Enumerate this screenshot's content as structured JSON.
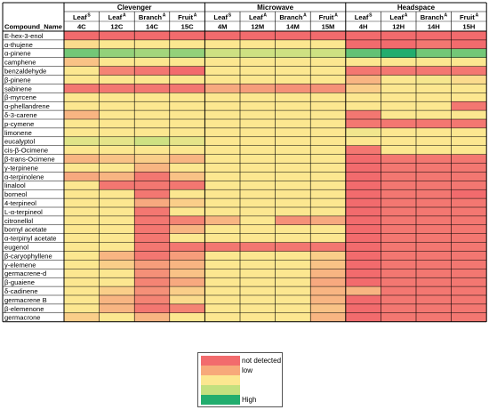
{
  "chart_data": {
    "type": "heatmap",
    "title": "",
    "row_header": "Compound_Name",
    "groups": [
      {
        "name": "Clevenger",
        "columns": [
          0,
          1,
          2,
          3
        ]
      },
      {
        "name": "Microwave",
        "columns": [
          4,
          5,
          6,
          7
        ]
      },
      {
        "name": "Headspace",
        "columns": [
          8,
          9,
          10,
          11
        ]
      }
    ],
    "columns": [
      {
        "tissue": "Leaf",
        "sup": "S",
        "code": "4C"
      },
      {
        "tissue": "Leaf",
        "sup": "A",
        "code": "12C"
      },
      {
        "tissue": "Branch",
        "sup": "A",
        "code": "14C"
      },
      {
        "tissue": "Fruit",
        "sup": "A",
        "code": "15C"
      },
      {
        "tissue": "Leaf",
        "sup": "S",
        "code": "4M"
      },
      {
        "tissue": "Leaf",
        "sup": "A",
        "code": "12M"
      },
      {
        "tissue": "Branch",
        "sup": "A",
        "code": "14M"
      },
      {
        "tissue": "Fruit",
        "sup": "A",
        "code": "15M"
      },
      {
        "tissue": "Leaf",
        "sup": "S",
        "code": "4H"
      },
      {
        "tissue": "Leaf",
        "sup": "A",
        "code": "12H"
      },
      {
        "tissue": "Branch",
        "sup": "A",
        "code": "14H"
      },
      {
        "tissue": "Fruit",
        "sup": "A",
        "code": "15H"
      }
    ],
    "rows": [
      "E-hex-3-enol",
      "α-thujene",
      "α-pinene",
      " camphene",
      "benzaldehyde",
      "β-pinene",
      "sabinene",
      "β-myrcene",
      "α-phellandrene",
      "δ-3-carene",
      "p-cymene",
      "limonene",
      "eucalyptol",
      "cis-β-Ocimene",
      "β-trans-Ocimene",
      "γ-terpinene",
      "α-terpinolene",
      "linalool",
      "borneol",
      "4-terpineol",
      " L-α-terpineol",
      "citronellol",
      "bornyl acetate",
      "α-terpinyl acetate",
      "eugenol",
      "β-caryophyllene",
      "γ-elemene",
      "germacrene-d",
      "β-guaiene",
      "δ-cadinene",
      "germacrene B",
      "β-elemenone",
      "germacrone"
    ],
    "scale": "0 = not detected, 1 = low, 4 = High",
    "values": [
      [
        0.0,
        0.0,
        0.0,
        0.0,
        0.0,
        0.0,
        0.0,
        0.0,
        0.0,
        0.0,
        0.0,
        0.0
      ],
      [
        0.9,
        1.0,
        1.0,
        1.0,
        1.0,
        1.0,
        1.0,
        1.0,
        0.0,
        0.0,
        0.1,
        0.0
      ],
      [
        3.0,
        2.6,
        2.4,
        2.6,
        1.8,
        1.8,
        1.8,
        1.8,
        3.2,
        4.0,
        3.0,
        3.0
      ],
      [
        0.7,
        1.0,
        1.0,
        1.0,
        1.0,
        1.0,
        1.0,
        1.0,
        1.0,
        1.0,
        1.0,
        1.0
      ],
      [
        1.0,
        0.2,
        0.1,
        0.0,
        1.0,
        1.0,
        1.0,
        1.0,
        0.1,
        0.1,
        0.1,
        0.1
      ],
      [
        1.0,
        1.0,
        1.0,
        1.0,
        1.0,
        1.0,
        1.0,
        1.0,
        0.6,
        1.0,
        1.1,
        0.9
      ],
      [
        0.1,
        0.1,
        0.1,
        0.1,
        0.5,
        0.4,
        0.3,
        0.3,
        0.8,
        1.0,
        1.0,
        1.0
      ],
      [
        1.0,
        1.0,
        1.0,
        1.0,
        1.0,
        1.0,
        1.0,
        1.0,
        1.0,
        1.0,
        1.0,
        1.0
      ],
      [
        1.0,
        1.0,
        1.0,
        1.0,
        1.0,
        1.0,
        1.0,
        1.0,
        1.0,
        1.0,
        1.0,
        0.1
      ],
      [
        0.6,
        1.0,
        1.0,
        1.0,
        1.0,
        1.0,
        1.0,
        1.0,
        0.1,
        1.0,
        1.0,
        1.0
      ],
      [
        1.0,
        1.0,
        1.0,
        1.0,
        1.0,
        1.0,
        1.0,
        1.0,
        0.1,
        0.1,
        0.1,
        0.1
      ],
      [
        1.0,
        1.0,
        1.0,
        1.0,
        1.0,
        1.0,
        1.0,
        1.0,
        1.2,
        1.0,
        1.0,
        1.0
      ],
      [
        1.5,
        1.4,
        1.8,
        1.4,
        1.0,
        1.0,
        1.0,
        1.0,
        1.0,
        1.0,
        1.0,
        1.0
      ],
      [
        1.0,
        1.0,
        1.0,
        1.0,
        1.0,
        1.0,
        1.0,
        1.0,
        0.1,
        1.0,
        1.0,
        1.0
      ],
      [
        0.6,
        0.7,
        0.8,
        0.6,
        1.0,
        1.0,
        1.0,
        1.0,
        0.0,
        0.1,
        0.1,
        0.1
      ],
      [
        1.0,
        1.0,
        0.6,
        1.0,
        1.0,
        1.0,
        1.0,
        1.0,
        0.0,
        0.1,
        0.1,
        0.1
      ],
      [
        0.5,
        0.6,
        0.1,
        0.7,
        1.0,
        1.0,
        1.0,
        1.0,
        0.0,
        0.1,
        0.1,
        0.1
      ],
      [
        1.0,
        0.1,
        0.1,
        0.1,
        1.0,
        1.0,
        1.0,
        1.0,
        0.0,
        0.1,
        0.1,
        0.1
      ],
      [
        1.0,
        1.0,
        0.1,
        1.0,
        1.0,
        1.0,
        1.0,
        1.0,
        0.0,
        0.1,
        0.1,
        0.0
      ],
      [
        1.0,
        1.0,
        0.5,
        0.8,
        1.0,
        1.0,
        1.0,
        1.0,
        0.0,
        0.1,
        0.1,
        0.1
      ],
      [
        1.0,
        1.0,
        0.1,
        1.0,
        1.0,
        1.0,
        1.0,
        1.0,
        0.0,
        0.1,
        0.1,
        0.1
      ],
      [
        1.0,
        1.0,
        0.1,
        0.2,
        0.6,
        1.0,
        0.3,
        0.5,
        0.0,
        0.1,
        0.1,
        0.1
      ],
      [
        1.0,
        1.0,
        0.1,
        0.6,
        1.0,
        1.0,
        1.0,
        1.0,
        0.0,
        0.1,
        0.1,
        0.1
      ],
      [
        1.0,
        1.0,
        0.1,
        1.0,
        1.0,
        1.0,
        1.0,
        1.0,
        0.0,
        0.1,
        0.1,
        0.1
      ],
      [
        1.0,
        1.0,
        0.1,
        0.1,
        0.1,
        0.1,
        0.1,
        0.1,
        0.0,
        0.1,
        0.1,
        0.1
      ],
      [
        1.0,
        0.6,
        0.1,
        0.4,
        1.0,
        1.0,
        1.0,
        0.8,
        0.0,
        0.1,
        0.1,
        0.1
      ],
      [
        1.0,
        0.8,
        0.4,
        0.6,
        1.0,
        1.0,
        1.0,
        0.7,
        0.0,
        0.1,
        0.1,
        0.1
      ],
      [
        1.0,
        1.0,
        0.3,
        0.7,
        1.0,
        1.0,
        1.0,
        0.6,
        0.0,
        0.1,
        0.1,
        0.1
      ],
      [
        1.0,
        1.0,
        0.2,
        0.5,
        1.0,
        1.0,
        1.0,
        0.5,
        0.0,
        0.1,
        0.1,
        0.1
      ],
      [
        1.0,
        0.8,
        0.3,
        0.8,
        1.0,
        1.0,
        1.0,
        0.6,
        0.6,
        0.1,
        0.1,
        0.1
      ],
      [
        1.0,
        0.6,
        0.2,
        0.9,
        1.0,
        1.0,
        1.0,
        0.6,
        0.0,
        0.1,
        0.1,
        0.1
      ],
      [
        1.0,
        0.6,
        0.1,
        0.2,
        1.0,
        1.0,
        1.0,
        0.7,
        0.0,
        0.1,
        0.1,
        0.1
      ],
      [
        0.8,
        1.0,
        0.6,
        1.0,
        1.0,
        1.0,
        1.0,
        0.6,
        0.0,
        0.1,
        0.1,
        0.1
      ]
    ],
    "legend": {
      "placement": "bottom-center",
      "items": [
        {
          "label": "not detected",
          "color": "#f26b6d"
        },
        {
          "label": "low",
          "color": "#f7a97a"
        },
        {
          "label": "",
          "color": "#fce790"
        },
        {
          "label": "",
          "color": "#c3e07f"
        },
        {
          "label": "High",
          "color": "#22ad6e"
        }
      ]
    },
    "colors": {
      "not_detected": "#f26b6d",
      "low": "#fce790",
      "mid": "#c3e07f",
      "high": "#22ad6e",
      "grid": "#000000",
      "header_bg": "#ffffff"
    }
  }
}
